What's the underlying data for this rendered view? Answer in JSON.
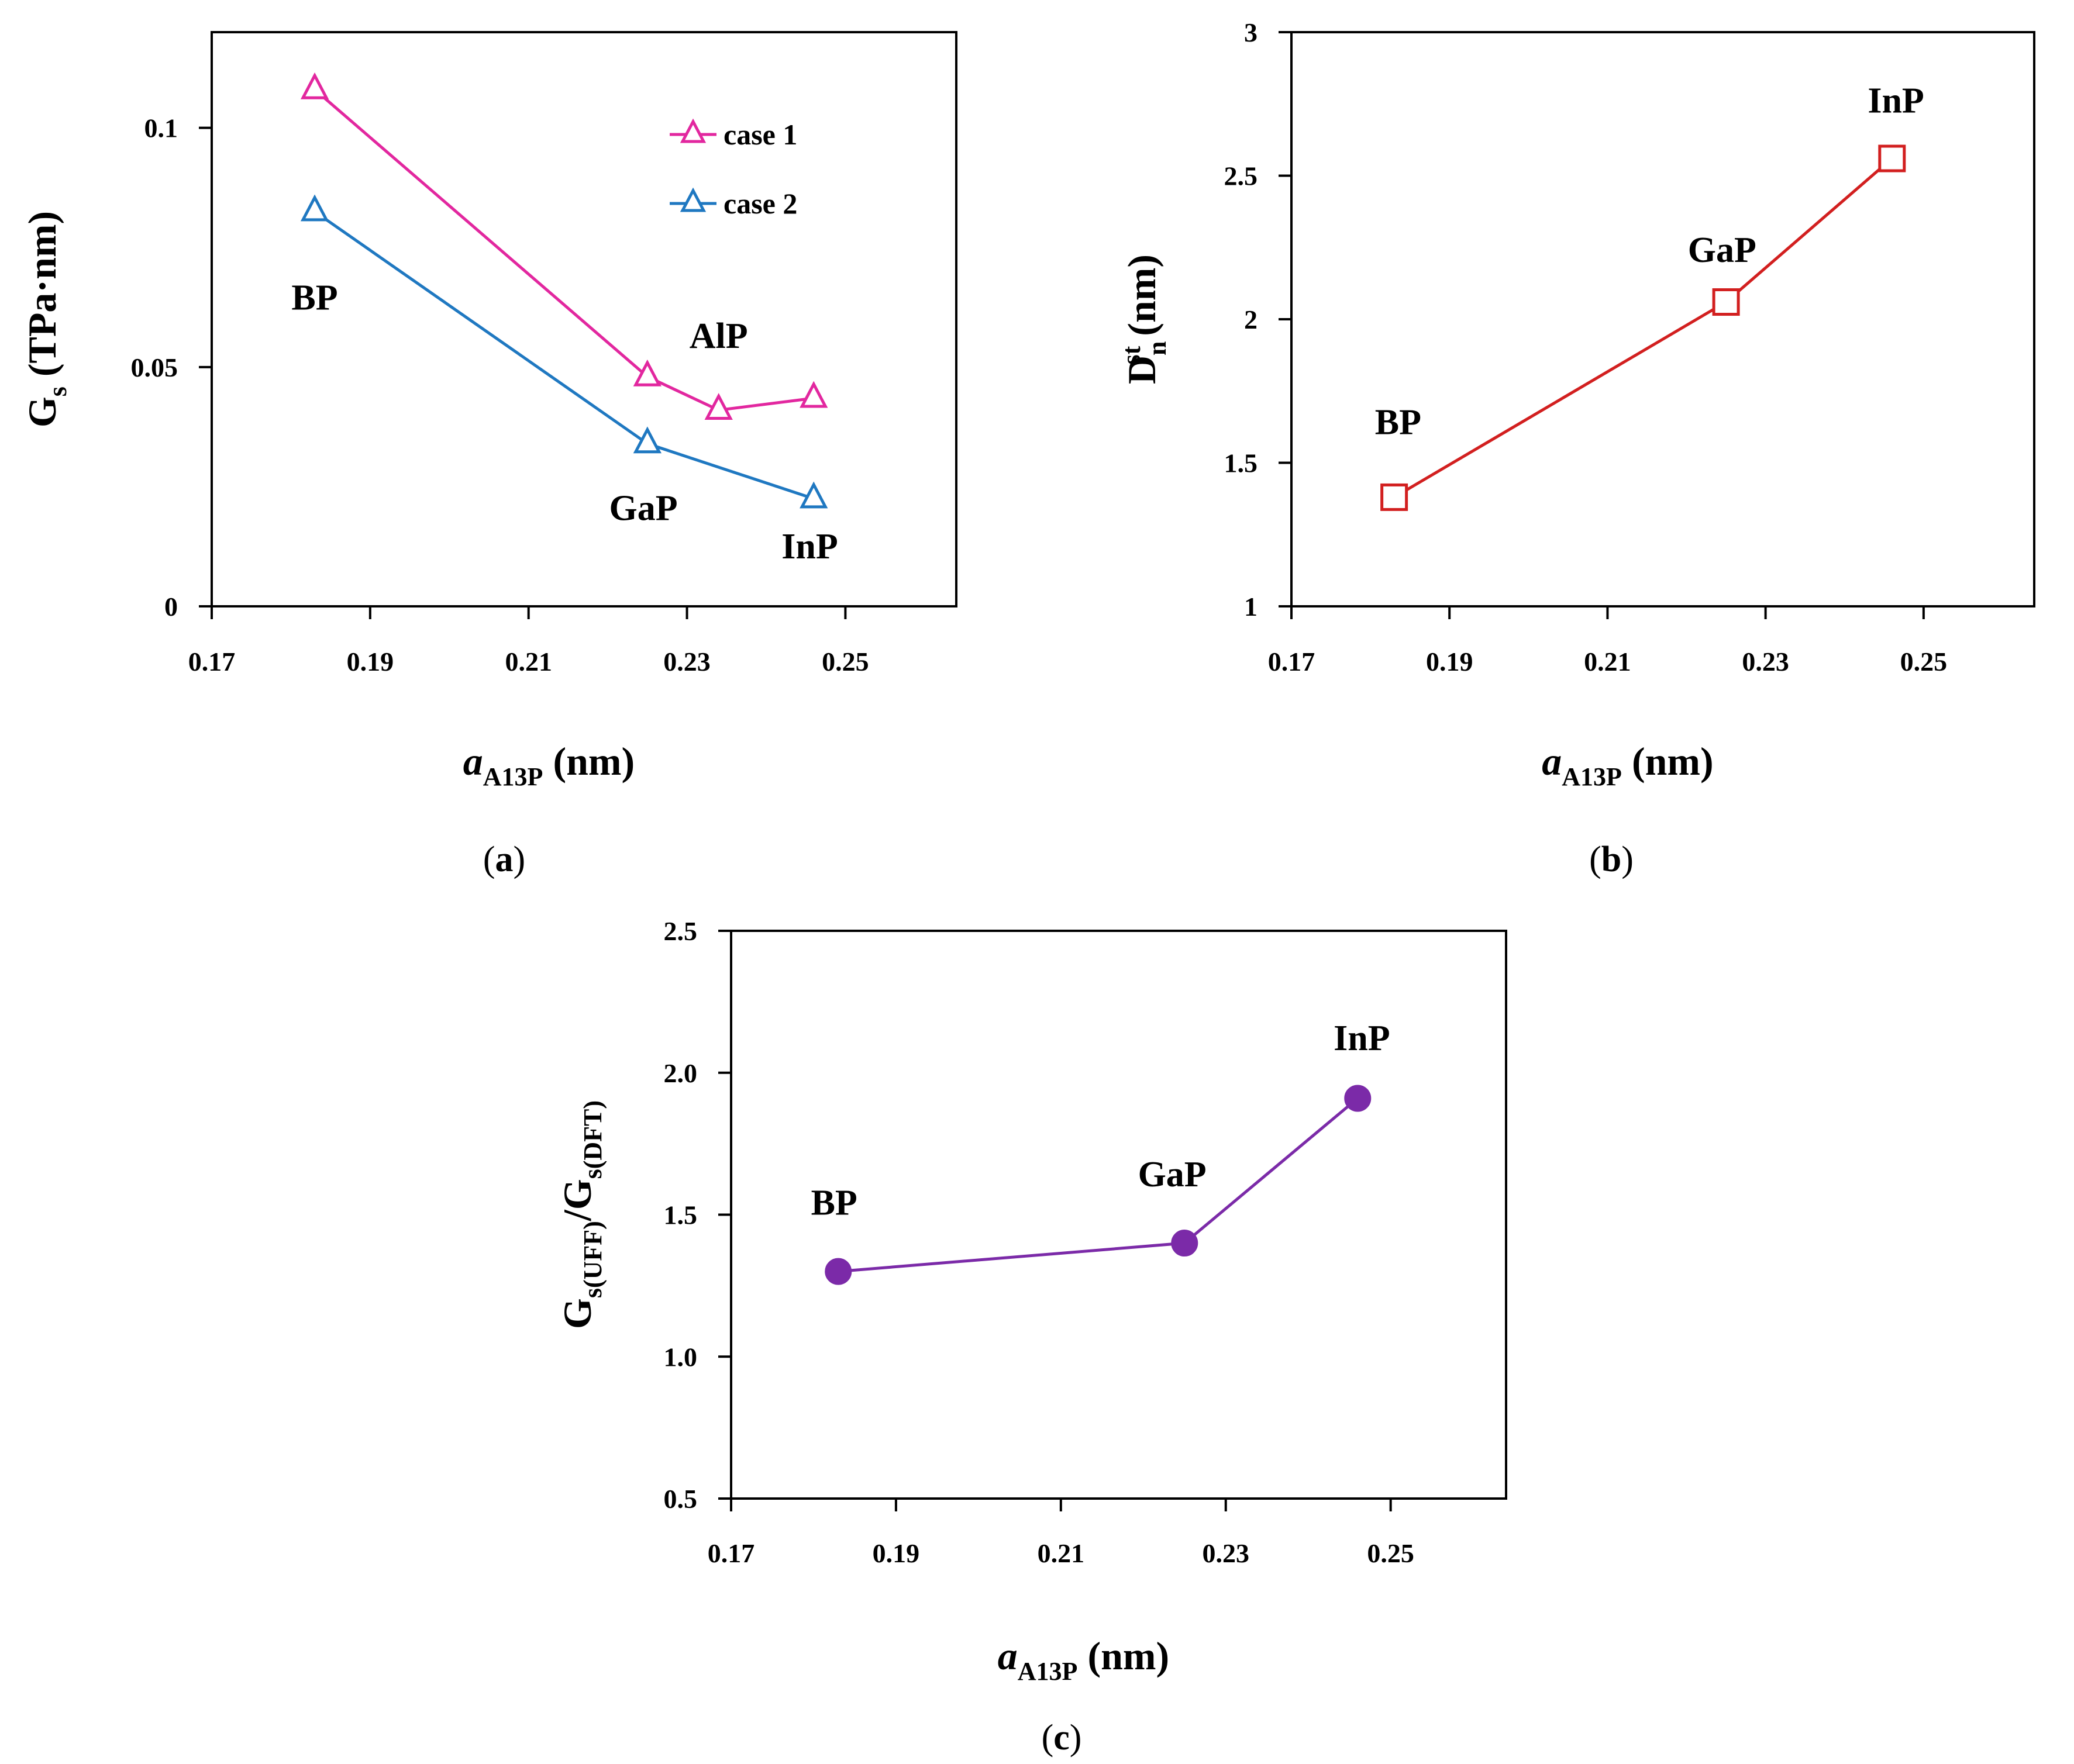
{
  "chart_data": [
    {
      "id": "a",
      "type": "line",
      "panel_label": "a",
      "ylabel": {
        "main": "G",
        "sub": "s",
        "unit": " (TPa·nm)"
      },
      "xlabel": {
        "italic": "a",
        "sub": "A13P",
        "unit": " (nm)"
      },
      "xlim": [
        0.17,
        0.264
      ],
      "ylim": [
        0,
        0.12
      ],
      "xticks": [
        0.17,
        0.19,
        0.21,
        0.23,
        0.25
      ],
      "xtick_labels": [
        "0.17",
        "0.19",
        "0.21",
        "0.23",
        "0.25"
      ],
      "yticks": [
        0,
        0.05,
        0.1
      ],
      "ytick_labels": [
        "0",
        "0.05",
        "0.1"
      ],
      "legend_position": "top-right",
      "series": [
        {
          "name": "case 1",
          "color": "#e2279f",
          "marker": "triangle",
          "x": [
            0.183,
            0.225,
            0.234,
            0.246
          ],
          "y": [
            0.108,
            0.048,
            0.041,
            0.0435
          ]
        },
        {
          "name": "case 2",
          "color": "#1f78c1",
          "marker": "triangle",
          "x": [
            0.183,
            0.225,
            0.246
          ],
          "y": [
            0.0825,
            0.034,
            0.0225
          ]
        }
      ],
      "annotations": [
        {
          "text": "BP",
          "x": 0.183,
          "y": 0.062
        },
        {
          "text": "AlP",
          "x": 0.234,
          "y": 0.054
        },
        {
          "text": "GaP",
          "x": 0.2245,
          "y": 0.018
        },
        {
          "text": "InP",
          "x": 0.2455,
          "y": 0.01
        }
      ]
    },
    {
      "id": "b",
      "type": "line",
      "panel_label": "b",
      "ylabel": {
        "main": "D",
        "sub": "n",
        "sup": "st",
        "unit": " (nm)"
      },
      "xlabel": {
        "italic": "a",
        "sub": "A13P",
        "unit": " (nm)"
      },
      "xlim": [
        0.17,
        0.264
      ],
      "ylim": [
        1,
        3
      ],
      "xticks": [
        0.17,
        0.19,
        0.21,
        0.23,
        0.25
      ],
      "xtick_labels": [
        "0.17",
        "0.19",
        "0.21",
        "0.23",
        "0.25"
      ],
      "yticks": [
        1,
        1.5,
        2,
        2.5,
        3
      ],
      "ytick_labels": [
        "1",
        "1.5",
        "2",
        "2.5",
        "3"
      ],
      "series": [
        {
          "name": "D_n^st",
          "color": "#d21f1f",
          "marker": "square",
          "x": [
            0.183,
            0.225,
            0.246
          ],
          "y": [
            1.38,
            2.06,
            2.56
          ]
        }
      ],
      "annotations": [
        {
          "text": "BP",
          "x": 0.1835,
          "y": 1.6
        },
        {
          "text": "GaP",
          "x": 0.2245,
          "y": 2.2
        },
        {
          "text": "InP",
          "x": 0.2465,
          "y": 2.72
        }
      ]
    },
    {
      "id": "c",
      "type": "line",
      "panel_label": "c",
      "ylabel": {
        "parts": [
          [
            "G",
            "s(UFF)"
          ],
          [
            "/",
            ""
          ],
          [
            "G",
            "s(DFT)"
          ]
        ]
      },
      "xlabel": {
        "italic": "a",
        "sub": "A13P",
        "unit": " (nm)"
      },
      "xlim": [
        0.17,
        0.264
      ],
      "ylim": [
        0.5,
        2.5
      ],
      "xticks": [
        0.17,
        0.19,
        0.21,
        0.23,
        0.25
      ],
      "xtick_labels": [
        "0.17",
        "0.19",
        "0.21",
        "0.23",
        "0.25"
      ],
      "yticks": [
        0.5,
        1.0,
        1.5,
        2.0,
        2.5
      ],
      "ytick_labels": [
        "0.5",
        "1.0",
        "1.5",
        "2.0",
        "2.5"
      ],
      "series": [
        {
          "name": "Gs(UFF)/Gs(DFT)",
          "color": "#7b2aa8",
          "marker": "circle",
          "x": [
            0.183,
            0.225,
            0.246
          ],
          "y": [
            1.3,
            1.4,
            1.91
          ]
        }
      ],
      "annotations": [
        {
          "text": "BP",
          "x": 0.1825,
          "y": 1.5
        },
        {
          "text": "GaP",
          "x": 0.2235,
          "y": 1.6
        },
        {
          "text": "InP",
          "x": 0.2465,
          "y": 2.08
        }
      ]
    }
  ]
}
